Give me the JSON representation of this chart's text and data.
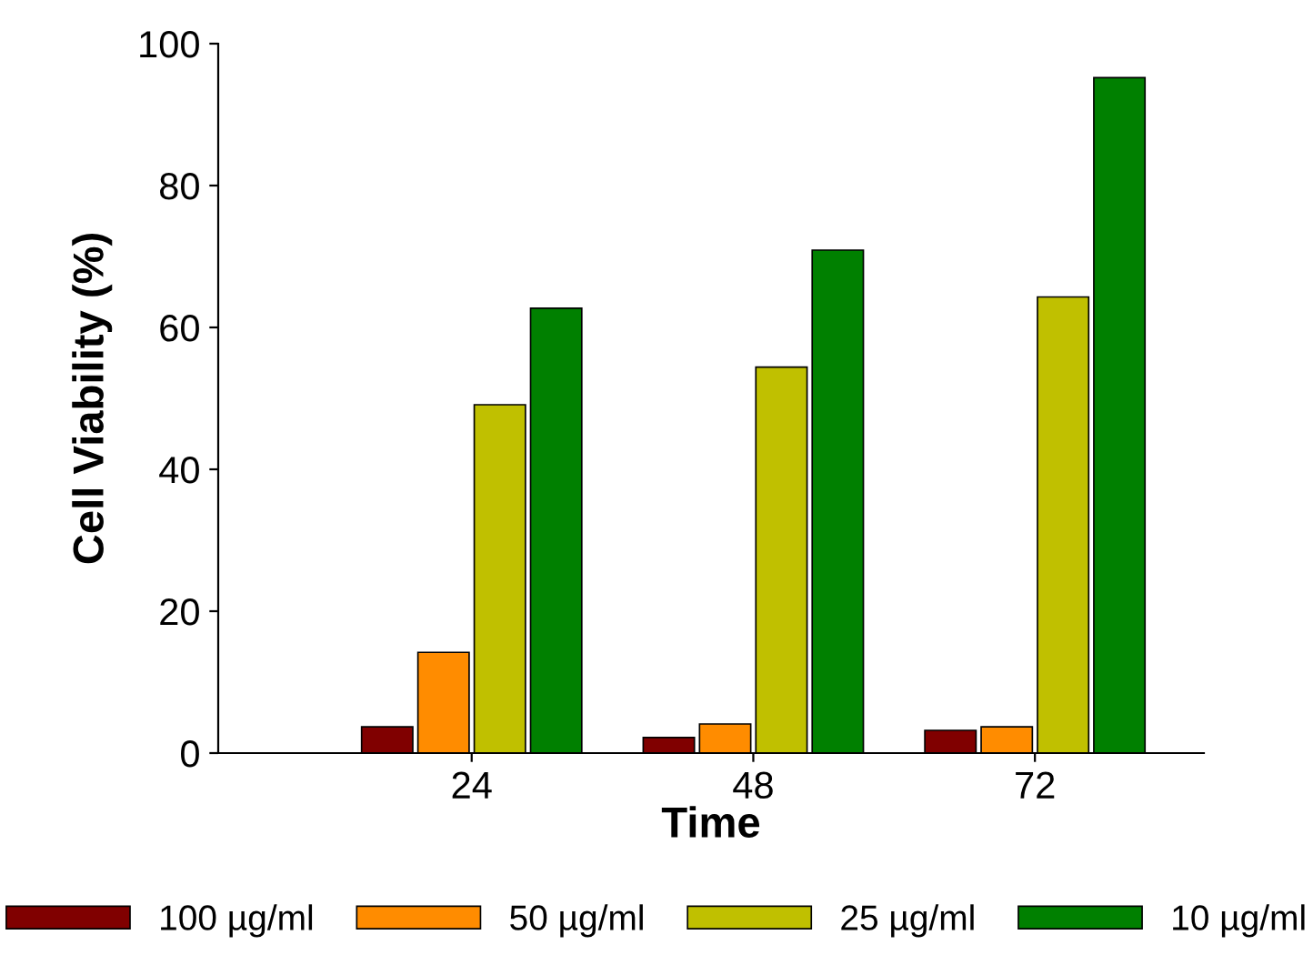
{
  "chart_data": {
    "type": "bar",
    "xlabel": "Time",
    "ylabel": "Cell Viability (%)",
    "categories": [
      "24",
      "48",
      "72"
    ],
    "series": [
      {
        "name": "100 µg/ml",
        "color": "#800000",
        "values": [
          3.7,
          2.2,
          3.2
        ]
      },
      {
        "name": "50 µg/ml",
        "color": "#ff8c00",
        "values": [
          14.2,
          4.1,
          3.7
        ]
      },
      {
        "name": "25 µg/ml",
        "color": "#c0c000",
        "values": [
          49.1,
          54.4,
          64.3
        ]
      },
      {
        "name": "10 µg/ml",
        "color": "#008000",
        "values": [
          62.7,
          70.9,
          95.2
        ]
      }
    ],
    "ylim": [
      0,
      100
    ],
    "yticks": [
      0,
      20,
      40,
      60,
      80,
      100
    ],
    "grid": false,
    "legend": "bottom"
  }
}
